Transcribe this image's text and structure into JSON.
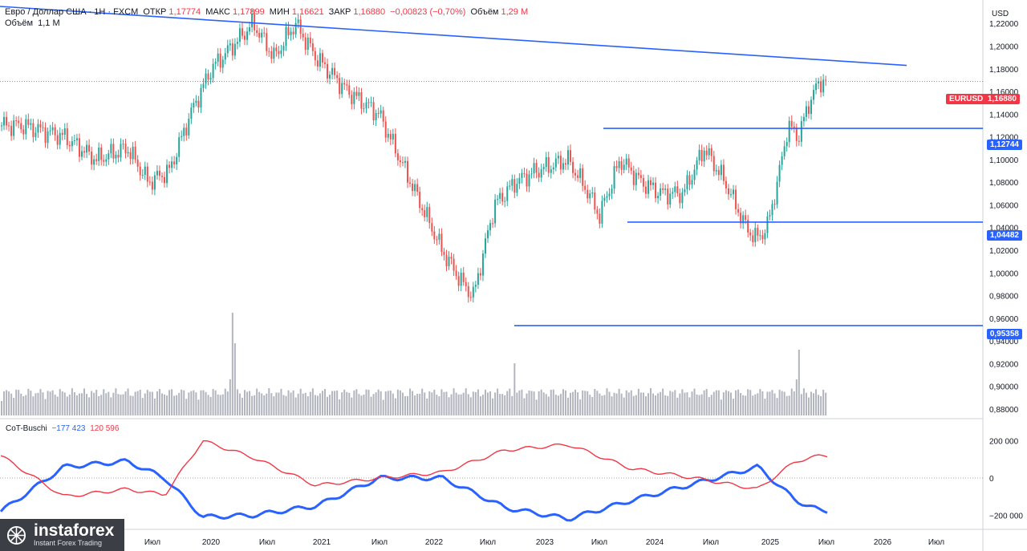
{
  "header": {
    "symbol": "Евро / Доллар США · 1Н · FXCM",
    "open_label": "ОТКР",
    "open": "1,17774",
    "high_label": "МАКС",
    "high": "1,17899",
    "low_label": "МИН",
    "low": "1,16621",
    "close_label": "ЗАКР",
    "close": "1,16880",
    "change": "−0,00823 (−0,70%)",
    "vol_label": "Объём",
    "vol": "1,29 M",
    "vol_line_label": "Объём",
    "vol_line_value": "1,1 M"
  },
  "price_axis": {
    "currency": "USD",
    "ticks": [
      "1,22000",
      "1,20000",
      "1,18000",
      "1,16000",
      "1,14000",
      "1,12000",
      "1,10000",
      "1,08000",
      "1,06000",
      "1,04000",
      "1,02000",
      "1,00000",
      "0,98000",
      "0,96000",
      "0,94000",
      "0,92000",
      "0,90000",
      "0,88000"
    ]
  },
  "tags": {
    "eurusd_label": "EURUSD",
    "eurusd_value": "1,16880",
    "eurusd_color": "#f23645",
    "level1": "1,12744",
    "level2": "1,04482",
    "level3": "0,95358",
    "level_color": "#2962ff"
  },
  "cot": {
    "title": "CoT-Buschi",
    "v1": "−177 423",
    "v2": "120 596",
    "v1_color": "#2962ff",
    "v2_color": "#f23645",
    "ticks": [
      "200 000",
      "0",
      "−200 000"
    ]
  },
  "time_axis": [
    "Июл",
    "2020",
    "Июл",
    "2021",
    "Июл",
    "2022",
    "Июл",
    "2023",
    "Июл",
    "2024",
    "Июл",
    "2025",
    "Июл",
    "2026",
    "Июл"
  ],
  "logo": {
    "name": "instaforex",
    "tagline": "Instant Forex Trading"
  },
  "chart_data": [
    {
      "type": "candlestick",
      "title": "Евро / Доллар США · 1Н · FXCM",
      "ylim": [
        0.88,
        1.235
      ],
      "x": [
        "2019-03",
        "2019-07",
        "2019-10",
        "2020-01",
        "2020-03",
        "2020-05",
        "2020-07",
        "2020-09",
        "2021-01",
        "2021-03",
        "2021-05",
        "2021-07",
        "2021-10",
        "2022-01",
        "2022-03",
        "2022-05",
        "2022-07",
        "2022-09",
        "2022-10",
        "2022-12",
        "2023-02",
        "2023-04",
        "2023-07",
        "2023-09",
        "2023-10",
        "2023-12",
        "2024-02",
        "2024-04",
        "2024-06",
        "2024-08",
        "2024-10",
        "2024-12",
        "2025-01",
        "2025-02",
        "2025-03",
        "2025-04",
        "2025-05",
        "2025-06",
        "2025-07"
      ],
      "close": [
        1.13,
        1.12,
        1.1,
        1.11,
        1.08,
        1.09,
        1.14,
        1.18,
        1.22,
        1.19,
        1.22,
        1.19,
        1.16,
        1.14,
        1.1,
        1.06,
        1.02,
        0.99,
        0.98,
        1.06,
        1.08,
        1.09,
        1.1,
        1.07,
        1.05,
        1.1,
        1.08,
        1.07,
        1.07,
        1.11,
        1.08,
        1.04,
        1.03,
        1.04,
        1.08,
        1.13,
        1.12,
        1.15,
        1.1688
      ],
      "levels": [
        1.12744,
        1.04482,
        0.95358
      ],
      "trendline": [
        [
          2019.0,
          1.235
        ],
        [
          2026.3,
          1.183
        ]
      ],
      "current_price": 1.1688
    },
    {
      "type": "line",
      "title": "CoT-Buschi",
      "ylim": [
        -250000,
        250000
      ],
      "x": [
        2019.0,
        2019.5,
        2020.0,
        2020.3,
        2020.6,
        2021.0,
        2021.5,
        2022.0,
        2022.5,
        2023.0,
        2023.5,
        2024.0,
        2024.5,
        2025.0,
        2025.3,
        2025.5
      ],
      "series": [
        {
          "values": [
            -180000,
            60000,
            90000,
            0,
            -210000,
            -200000,
            -150000,
            0,
            0,
            -160000,
            -220000,
            -120000,
            -30000,
            60000,
            -120000,
            -177423
          ]
        },
        {
          "values": [
            120000,
            -100000,
            -60000,
            -90000,
            200000,
            110000,
            -40000,
            0,
            30000,
            150000,
            180000,
            50000,
            0,
            -60000,
            90000,
            120596
          ]
        }
      ]
    }
  ]
}
